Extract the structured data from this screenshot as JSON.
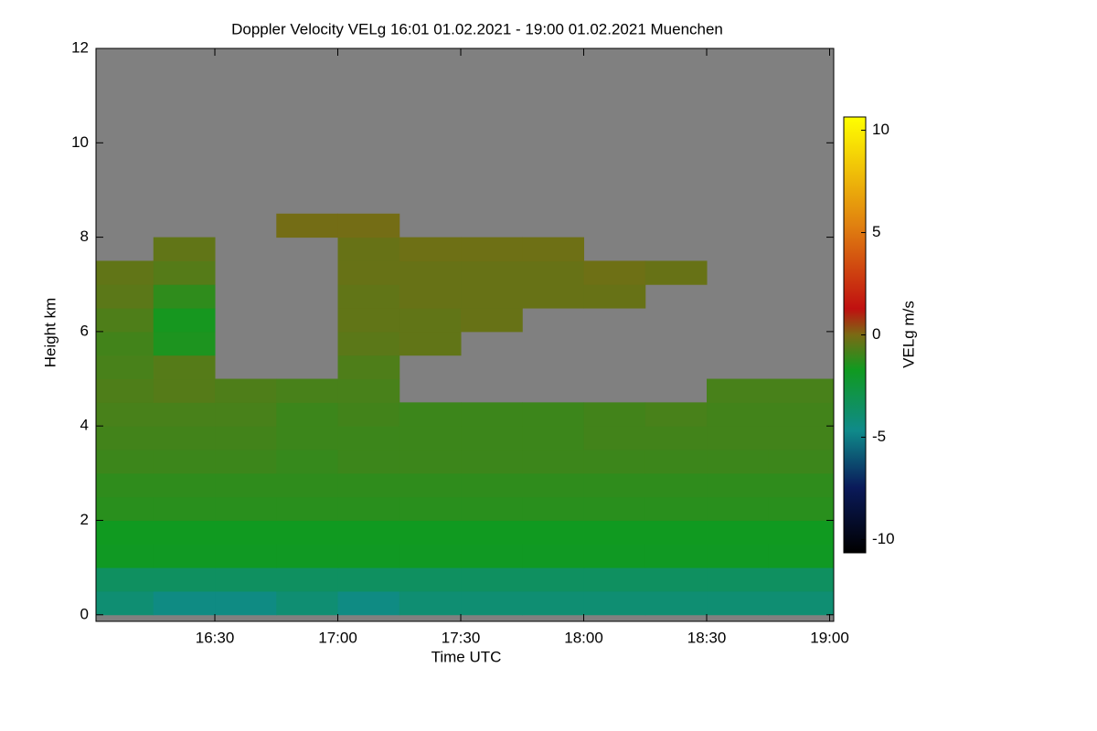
{
  "chart_data": {
    "type": "heatmap",
    "title": "Doppler Velocity VELg   16:01 01.02.2021 - 19:00 01.02.2021 Muenchen",
    "x_label": "Time UTC",
    "y_label": "Height km",
    "colorbar_label": "VELg m/s",
    "xlim": [
      961,
      1141
    ],
    "xticks": [
      {
        "value": 990,
        "label": "16:30"
      },
      {
        "value": 1020,
        "label": "17:00"
      },
      {
        "value": 1050,
        "label": "17:30"
      },
      {
        "value": 1080,
        "label": "18:00"
      },
      {
        "value": 1110,
        "label": "18:30"
      },
      {
        "value": 1140,
        "label": "19:00"
      }
    ],
    "ylim": [
      -0.14,
      12
    ],
    "yticks": [
      0,
      2,
      4,
      6,
      8,
      10,
      12
    ],
    "zlim": [
      -10.65,
      10.65
    ],
    "zticks": [
      -10,
      -5,
      0,
      5,
      10
    ],
    "missing_color": "#808080",
    "x_bins": [
      960,
      975,
      990,
      1005,
      1020,
      1035,
      1050,
      1065,
      1080,
      1095,
      1110,
      1125,
      1141
    ],
    "y_bins": [
      0,
      0.5,
      1,
      1.5,
      2,
      2.5,
      3,
      3.5,
      4,
      4.5,
      5,
      5.5,
      6,
      6.5,
      7,
      7.5,
      8,
      8.5,
      9,
      9.5,
      10,
      10.5,
      11,
      11.5,
      12
    ],
    "z": [
      [
        -4,
        -4.5,
        -4.5,
        -4,
        -4.5,
        -4,
        -4,
        -4,
        -4,
        -4,
        -4,
        -4
      ],
      [
        -3.5,
        -3.5,
        -3.5,
        -3.5,
        -3.5,
        -3.5,
        -3.5,
        -3.5,
        -3.5,
        -3.5,
        -3.5,
        -3.5
      ],
      [
        -1.8,
        -1.8,
        -1.8,
        -1.8,
        -1.8,
        -1.8,
        -1.8,
        -1.8,
        -1.8,
        -1.8,
        -1.8,
        -1.8
      ],
      [
        -1.7,
        -1.7,
        -1.7,
        -1.7,
        -1.7,
        -1.7,
        -1.7,
        -1.7,
        -1.7,
        -1.7,
        -1.7,
        -1.7
      ],
      [
        -1.3,
        -1.3,
        -1.3,
        -1.3,
        -1.3,
        -1.3,
        -1.3,
        -1.3,
        -1.3,
        -1.3,
        -1.3,
        -1.3
      ],
      [
        -1.2,
        -1.2,
        -1.2,
        -1.2,
        -1.2,
        -1.2,
        -1.2,
        -1.2,
        -1.2,
        -1.2,
        -1.2,
        -1.2
      ],
      [
        -1,
        -1,
        -1,
        -1.1,
        -1,
        -1,
        -1,
        -1,
        -1,
        -1,
        -1,
        -1
      ],
      [
        -0.9,
        -0.9,
        -0.9,
        -1,
        -1,
        -1,
        -1,
        -1,
        -0.9,
        -0.9,
        -0.9,
        -0.9
      ],
      [
        -0.8,
        -0.8,
        -0.8,
        -1,
        -0.9,
        -1,
        -1,
        -1,
        -0.9,
        -0.8,
        -0.9,
        -0.9
      ],
      [
        -0.7,
        -0.6,
        -0.7,
        -0.8,
        -0.8,
        null,
        null,
        null,
        null,
        null,
        -0.8,
        -0.8
      ],
      [
        -0.8,
        -0.6,
        null,
        null,
        -0.7,
        null,
        null,
        null,
        null,
        null,
        null,
        null
      ],
      [
        -0.9,
        -1.5,
        null,
        null,
        -0.5,
        -0.4,
        null,
        null,
        null,
        null,
        null,
        null
      ],
      [
        -0.7,
        -1.6,
        null,
        null,
        -0.4,
        -0.4,
        -0.3,
        null,
        null,
        null,
        null,
        null
      ],
      [
        -0.5,
        -1.2,
        null,
        null,
        -0.4,
        -0.3,
        -0.3,
        -0.3,
        -0.3,
        null,
        null,
        null
      ],
      [
        -0.4,
        -0.6,
        null,
        null,
        -0.3,
        -0.3,
        -0.3,
        -0.3,
        -0.2,
        -0.3,
        null,
        null
      ],
      [
        null,
        -0.4,
        null,
        null,
        -0.3,
        -0.2,
        -0.2,
        -0.2,
        null,
        null,
        null,
        null
      ],
      [
        null,
        null,
        null,
        -0.1,
        -0.1,
        null,
        null,
        null,
        null,
        null,
        null,
        null
      ],
      [
        null,
        null,
        null,
        null,
        null,
        null,
        null,
        null,
        null,
        null,
        null,
        null
      ],
      [
        null,
        null,
        null,
        null,
        null,
        null,
        null,
        null,
        null,
        null,
        null,
        null
      ],
      [
        null,
        null,
        null,
        null,
        null,
        null,
        null,
        null,
        null,
        null,
        null,
        null
      ],
      [
        null,
        null,
        null,
        null,
        null,
        null,
        null,
        null,
        null,
        null,
        null,
        null
      ],
      [
        null,
        null,
        null,
        null,
        null,
        null,
        null,
        null,
        null,
        null,
        null,
        null
      ],
      [
        null,
        null,
        null,
        null,
        null,
        null,
        null,
        null,
        null,
        null,
        null,
        null
      ],
      [
        null,
        null,
        null,
        null,
        null,
        null,
        null,
        null,
        null,
        null,
        null,
        null
      ]
    ]
  }
}
